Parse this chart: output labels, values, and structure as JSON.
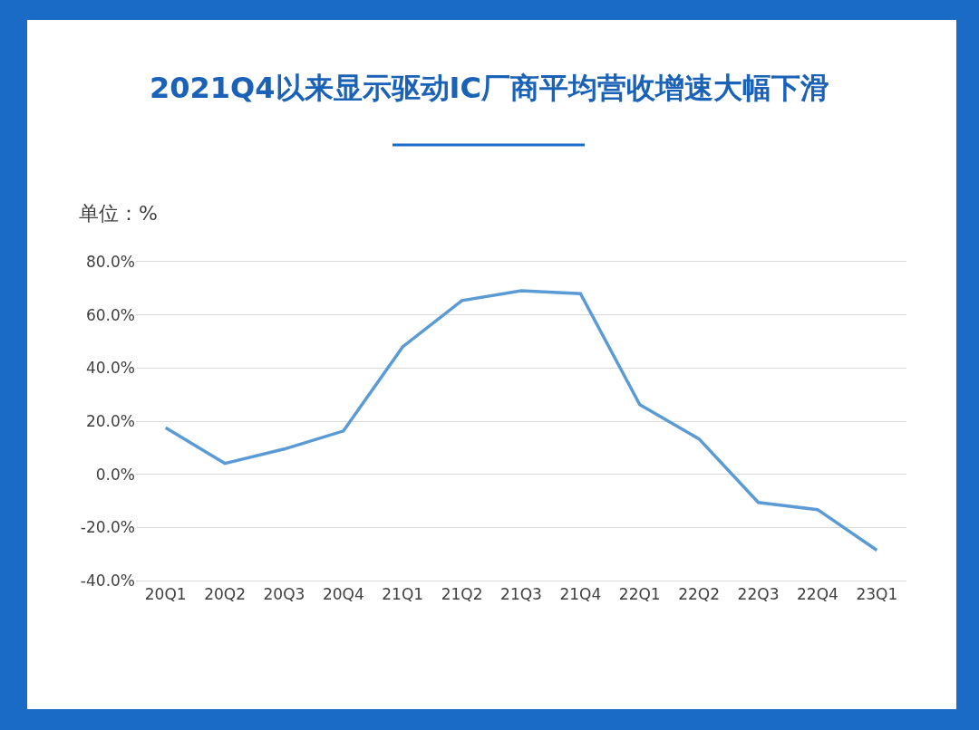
{
  "chart_data": {
    "type": "line",
    "title": "2021Q4以来显示驱动IC厂商平均营收增速大幅下滑",
    "ylabel": "单位：%",
    "categories": [
      "20Q1",
      "20Q2",
      "20Q3",
      "20Q4",
      "21Q1",
      "21Q2",
      "21Q3",
      "21Q4",
      "22Q1",
      "22Q2",
      "22Q3",
      "22Q4",
      "23Q1"
    ],
    "series": [
      {
        "color": "#5b9bd5",
        "values": [
          17.5,
          4.1,
          9.5,
          16.3,
          48,
          65.4,
          69.1,
          68,
          26.2,
          13.3,
          -10.6,
          -13.3,
          -28.6
        ]
      }
    ],
    "ylim": [
      -40,
      80
    ],
    "yticks": [
      {
        "value": -40,
        "label": "-40.0%"
      },
      {
        "value": -20,
        "label": "-20.0%"
      },
      {
        "value": 0,
        "label": "0.0%"
      },
      {
        "value": 20,
        "label": "20.0%"
      },
      {
        "value": 40,
        "label": "40.0%"
      },
      {
        "value": 60,
        "label": "60.0%"
      },
      {
        "value": 80,
        "label": "80.0%"
      }
    ],
    "grid": "y",
    "marker": "none",
    "line_style": "solid"
  }
}
